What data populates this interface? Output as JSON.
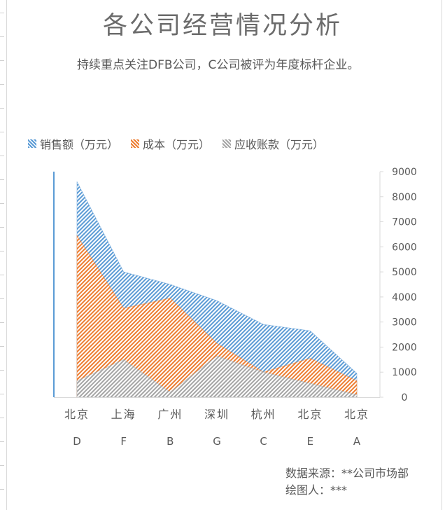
{
  "header": {
    "title": "各公司经营情况分析",
    "subtitle": "持续重点关注DFB公司，C公司被评为年度标杆企业。"
  },
  "legend": {
    "items": [
      {
        "label": "销售额（万元）",
        "color": "#5b9bd5"
      },
      {
        "label": "成本（万元）",
        "color": "#ed7d31"
      },
      {
        "label": "应收账款（万元）",
        "color": "#a5a5a5"
      }
    ]
  },
  "footer": {
    "source": "数据来源：**公司市场部",
    "author": "绘图人：***"
  },
  "chart_data": {
    "type": "area",
    "categories_level1": [
      "北京",
      "上海",
      "广州",
      "深圳",
      "杭州",
      "北京",
      "北京"
    ],
    "categories_level2": [
      "D",
      "F",
      "B",
      "G",
      "C",
      "E",
      "A"
    ],
    "series": [
      {
        "name": "销售额（万元）",
        "color": "#5b9bd5",
        "values": [
          8600,
          5000,
          4500,
          3850,
          2900,
          2650,
          950
        ]
      },
      {
        "name": "成本（万元）",
        "color": "#ed7d31",
        "values": [
          6450,
          3550,
          3950,
          2150,
          1000,
          1550,
          650
        ]
      },
      {
        "name": "应收账款（万元）",
        "color": "#a5a5a5",
        "values": [
          650,
          1500,
          200,
          1650,
          1000,
          550,
          100
        ]
      }
    ],
    "y_axis": {
      "position": "right",
      "ylim": [
        0,
        9000
      ],
      "ticks": [
        "0",
        "1000",
        "2000",
        "3000",
        "4000",
        "5000",
        "6000",
        "7000",
        "8000",
        "9000"
      ]
    },
    "grid": false,
    "legend_position": "top-left",
    "fill_pattern": "diagonal-hatch"
  }
}
